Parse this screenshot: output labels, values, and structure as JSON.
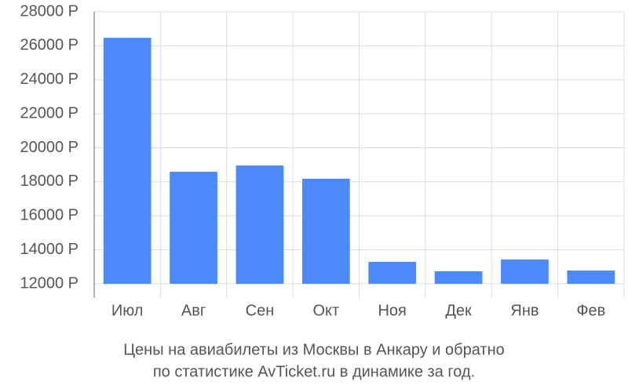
{
  "chart_data": {
    "type": "bar",
    "title": "Цены на авиабилеты из Москвы в Анкару и обратно",
    "subtitle": "по статистике AvTicket.ru в динамике за год.",
    "categories": [
      "Июл",
      "Авг",
      "Сен",
      "Окт",
      "Ноя",
      "Дек",
      "Янв",
      "Фев"
    ],
    "values": [
      26470,
      18590,
      18960,
      18180,
      13290,
      12740,
      13430,
      12780
    ],
    "color": "#4c8afc",
    "ylim": [
      12000,
      28000
    ],
    "yticks": [
      {
        "value": 12000,
        "label": "12000 Р"
      },
      {
        "value": 14000,
        "label": "14000 Р"
      },
      {
        "value": 16000,
        "label": "16000 Р"
      },
      {
        "value": 18000,
        "label": "18000 Р"
      },
      {
        "value": 20000,
        "label": "20000 Р"
      },
      {
        "value": 22000,
        "label": "22000 Р"
      },
      {
        "value": 24000,
        "label": "24000 Р"
      },
      {
        "value": 26000,
        "label": "26000 Р"
      },
      {
        "value": 28000,
        "label": "28000 Р"
      }
    ],
    "grid": true
  }
}
